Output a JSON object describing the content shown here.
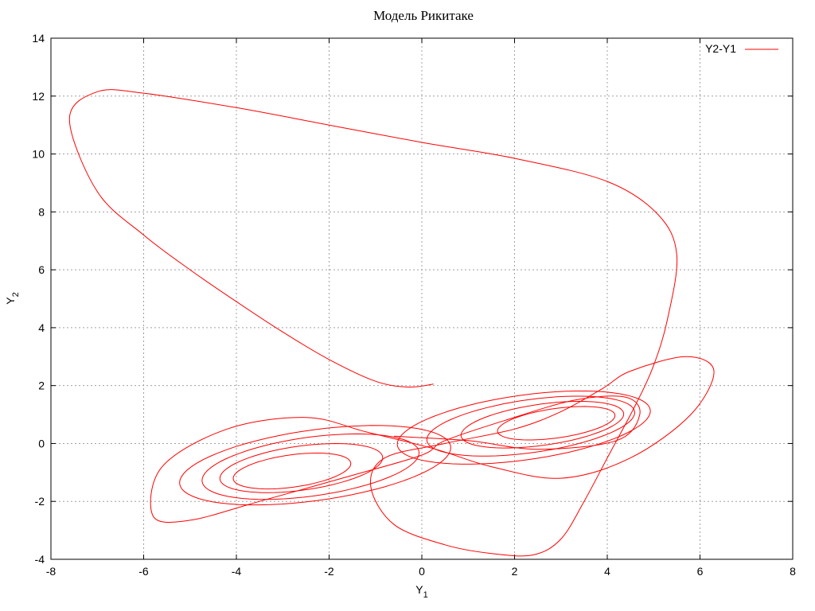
{
  "colors": {
    "series": "#ff0000",
    "grid": "#a0a0a0",
    "axes": "#000000"
  },
  "chart_data": {
    "type": "line",
    "title": "Модель Рикитаке",
    "xlabel": "Y",
    "xlabel_sub": "1",
    "ylabel": "Y",
    "ylabel_sub": "2",
    "xlim": [
      -8,
      8
    ],
    "ylim": [
      -4,
      14
    ],
    "xticks": [
      -8,
      -6,
      -4,
      -2,
      0,
      2,
      4,
      6,
      8
    ],
    "yticks": [
      -4,
      -2,
      0,
      2,
      4,
      6,
      8,
      10,
      12,
      14
    ],
    "grid": true,
    "legend_position": "top-right",
    "series": [
      {
        "name": "Y2-Y1",
        "color": "#ff0000",
        "segments": [
          [
            [
              0.25,
              2.05
            ],
            [
              -0.3,
              1.95
            ],
            [
              -1,
              2.15
            ],
            [
              -2,
              2.9
            ],
            [
              -3,
              3.85
            ],
            [
              -4,
              4.9
            ],
            [
              -5,
              6.0
            ],
            [
              -6,
              7.2
            ],
            [
              -7,
              8.7
            ],
            [
              -7.6,
              11.2
            ],
            [
              -7.0,
              12.15
            ],
            [
              -6,
              12.1
            ],
            [
              -4,
              11.6
            ],
            [
              -2,
              11.0
            ],
            [
              0,
              10.4
            ],
            [
              2,
              9.85
            ],
            [
              4,
              9.05
            ],
            [
              5.1,
              7.9
            ],
            [
              5.5,
              6.5
            ],
            [
              5.3,
              4.3
            ],
            [
              5.0,
              2.7
            ],
            [
              4.6,
              1.3
            ],
            [
              4.0,
              -0.5
            ],
            [
              3.5,
              -2.0
            ],
            [
              3.0,
              -3.3
            ],
            [
              2.4,
              -3.85
            ],
            [
              1.5,
              -3.8
            ],
            [
              0.5,
              -3.5
            ],
            [
              -0.6,
              -2.8
            ],
            [
              -1.1,
              -1.5
            ],
            [
              -0.8,
              -0.5
            ],
            [
              0.5,
              0.0
            ],
            [
              2,
              0.5
            ],
            [
              3,
              1.1
            ],
            [
              3.9,
              1.9
            ],
            [
              4.5,
              2.5
            ],
            [
              5.7,
              3.0
            ],
            [
              6.3,
              2.5
            ],
            [
              5.8,
              1.0
            ],
            [
              4.5,
              -0.5
            ],
            [
              3,
              -1.2
            ],
            [
              1.5,
              -0.8
            ],
            [
              0.3,
              -0.2
            ],
            [
              -1.2,
              0.4
            ],
            [
              -2.5,
              0.9
            ],
            [
              -4.2,
              0.5
            ],
            [
              -5.6,
              -0.8
            ],
            [
              -5.8,
              -2.5
            ],
            [
              -5.0,
              -2.65
            ],
            [
              -3.5,
              -2.0
            ],
            [
              -1.5,
              -1.1
            ],
            [
              0,
              -0.4
            ],
            [
              0.5,
              0.1
            ],
            [
              1.8,
              0.8
            ],
            [
              3.3,
              1.5
            ],
            [
              4.4,
              1.6
            ],
            [
              4.7,
              1.0
            ],
            [
              4.2,
              0.1
            ],
            [
              2.5,
              -0.2
            ],
            [
              1.0,
              0.1
            ],
            [
              -0.6,
              0.25
            ]
          ]
        ],
        "attractor_loops": [
          {
            "cx": -2.3,
            "cy": -0.75,
            "rx": 3.0,
            "ry": 1.2,
            "rot": 14
          },
          {
            "cx": -2.4,
            "cy": -0.8,
            "rx": 2.4,
            "ry": 1.0,
            "rot": 14
          },
          {
            "cx": -2.6,
            "cy": -0.85,
            "rx": 1.8,
            "ry": 0.75,
            "rot": 14
          },
          {
            "cx": -2.8,
            "cy": -0.95,
            "rx": 1.3,
            "ry": 0.55,
            "rot": 14
          },
          {
            "cx": 2.2,
            "cy": 0.55,
            "rx": 2.8,
            "ry": 1.1,
            "rot": 14
          },
          {
            "cx": 2.35,
            "cy": 0.6,
            "rx": 2.3,
            "ry": 0.9,
            "rot": 14
          },
          {
            "cx": 2.6,
            "cy": 0.65,
            "rx": 1.8,
            "ry": 0.7,
            "rot": 14
          },
          {
            "cx": 2.9,
            "cy": 0.7,
            "rx": 1.3,
            "ry": 0.5,
            "rot": 14
          }
        ]
      }
    ]
  }
}
